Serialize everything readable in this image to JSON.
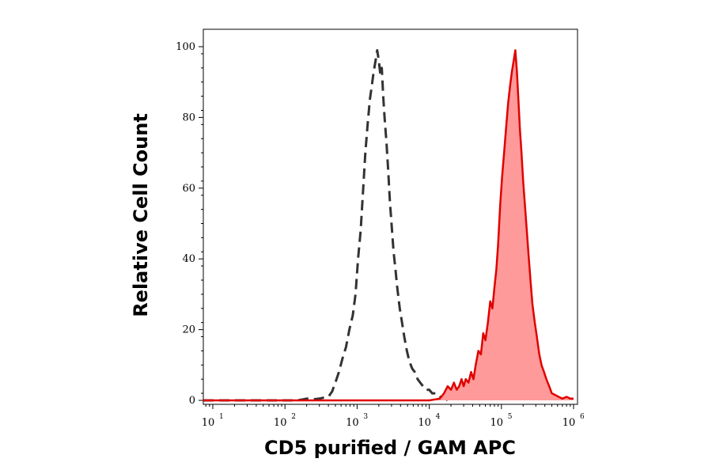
{
  "chart_data": {
    "type": "area",
    "xlabel": "CD5 purified / GAM APC",
    "ylabel": "Relative Cell Count",
    "x_scale": "log",
    "xlim": [
      10,
      1000000
    ],
    "ylim": [
      0,
      100
    ],
    "x_ticks": [
      {
        "value": 10,
        "base": "10",
        "exp": "1"
      },
      {
        "value": 100,
        "base": "10",
        "exp": "2"
      },
      {
        "value": 1000,
        "base": "10",
        "exp": "3"
      },
      {
        "value": 10000,
        "base": "10",
        "exp": "4"
      },
      {
        "value": 100000,
        "base": "10",
        "exp": "5"
      },
      {
        "value": 1000000,
        "base": "10",
        "exp": "6"
      }
    ],
    "y_ticks": [
      "0",
      "20",
      "40",
      "60",
      "80",
      "100"
    ],
    "grid": false,
    "series": [
      {
        "style": "dashed",
        "color": "#333333",
        "fill": "none",
        "points": [
          [
            7,
            0
          ],
          [
            100,
            0
          ],
          [
            150,
            0
          ],
          [
            200,
            0.5
          ],
          [
            250,
            0.3
          ],
          [
            300,
            0.5
          ],
          [
            350,
            0.8
          ],
          [
            400,
            1
          ],
          [
            450,
            2.5
          ],
          [
            500,
            5
          ],
          [
            560,
            8
          ],
          [
            630,
            12
          ],
          [
            700,
            15
          ],
          [
            780,
            20
          ],
          [
            870,
            24
          ],
          [
            950,
            30
          ],
          [
            1030,
            40
          ],
          [
            1120,
            48
          ],
          [
            1200,
            58
          ],
          [
            1300,
            70
          ],
          [
            1400,
            78
          ],
          [
            1500,
            85
          ],
          [
            1600,
            89
          ],
          [
            1700,
            93
          ],
          [
            1800,
            96
          ],
          [
            1900,
            99
          ],
          [
            2000,
            96
          ],
          [
            2100,
            92
          ],
          [
            2200,
            94
          ],
          [
            2300,
            86
          ],
          [
            2400,
            80
          ],
          [
            2550,
            73
          ],
          [
            2700,
            65
          ],
          [
            2850,
            56
          ],
          [
            3000,
            50
          ],
          [
            3200,
            42
          ],
          [
            3400,
            37
          ],
          [
            3600,
            32
          ],
          [
            3900,
            26
          ],
          [
            4200,
            22
          ],
          [
            4500,
            18
          ],
          [
            4900,
            14
          ],
          [
            5300,
            11
          ],
          [
            5800,
            9
          ],
          [
            6300,
            8
          ],
          [
            6900,
            6
          ],
          [
            7500,
            5
          ],
          [
            8200,
            4
          ],
          [
            9000,
            3
          ],
          [
            10000,
            3
          ],
          [
            11000,
            2
          ],
          [
            12500,
            2
          ],
          [
            14000,
            1
          ],
          [
            16000,
            1
          ],
          [
            18000,
            0
          ]
        ]
      },
      {
        "style": "solid",
        "color": "#e00000",
        "fill": "#ff9a9a",
        "points": [
          [
            7,
            0
          ],
          [
            10000,
            0
          ],
          [
            14000,
            0.5
          ],
          [
            16000,
            2
          ],
          [
            18000,
            4
          ],
          [
            20000,
            3
          ],
          [
            22000,
            5
          ],
          [
            24000,
            3
          ],
          [
            26000,
            4
          ],
          [
            28000,
            6
          ],
          [
            30000,
            4
          ],
          [
            32000,
            6
          ],
          [
            35000,
            5
          ],
          [
            38000,
            8
          ],
          [
            41000,
            6
          ],
          [
            44000,
            10
          ],
          [
            48000,
            14
          ],
          [
            52000,
            13
          ],
          [
            56000,
            19
          ],
          [
            60000,
            17
          ],
          [
            65000,
            22
          ],
          [
            70000,
            28
          ],
          [
            75000,
            26
          ],
          [
            80000,
            32
          ],
          [
            85000,
            37
          ],
          [
            90000,
            44
          ],
          [
            96000,
            55
          ],
          [
            102000,
            63
          ],
          [
            109000,
            70
          ],
          [
            116000,
            77
          ],
          [
            124000,
            84
          ],
          [
            132000,
            89
          ],
          [
            140000,
            93
          ],
          [
            148000,
            96
          ],
          [
            156000,
            99
          ],
          [
            164000,
            93
          ],
          [
            172000,
            85
          ],
          [
            180000,
            77
          ],
          [
            190000,
            70
          ],
          [
            200000,
            62
          ],
          [
            212000,
            55
          ],
          [
            225000,
            48
          ],
          [
            240000,
            40
          ],
          [
            255000,
            33
          ],
          [
            270000,
            27
          ],
          [
            290000,
            22
          ],
          [
            310000,
            18
          ],
          [
            335000,
            13
          ],
          [
            360000,
            10
          ],
          [
            390000,
            8
          ],
          [
            420000,
            6
          ],
          [
            460000,
            4
          ],
          [
            500000,
            2
          ],
          [
            560000,
            1.5
          ],
          [
            620000,
            1
          ],
          [
            700000,
            0.5
          ],
          [
            800000,
            1
          ],
          [
            900000,
            0.5
          ],
          [
            1000000,
            0.5
          ]
        ]
      }
    ]
  }
}
